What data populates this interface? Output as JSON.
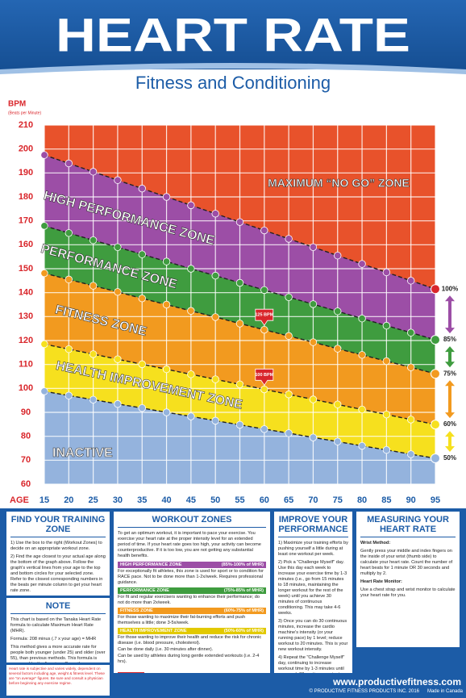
{
  "header": {
    "title": "HEART RATE",
    "subtitle": "Fitness and Conditioning"
  },
  "chart_data": {
    "type": "line",
    "y_axis_label": "BPM",
    "y_axis_sublabel": "(Beats per Minute)",
    "x_axis_label": "AGE",
    "x": [
      15,
      20,
      25,
      30,
      35,
      40,
      45,
      50,
      55,
      60,
      65,
      70,
      75,
      80,
      85,
      90,
      95
    ],
    "xlim": [
      15,
      95
    ],
    "xticks": [
      15,
      20,
      25,
      30,
      35,
      40,
      45,
      50,
      55,
      60,
      65,
      70,
      75,
      80,
      85,
      90,
      95
    ],
    "ylim": [
      60,
      210
    ],
    "yticks": [
      60,
      70,
      80,
      90,
      100,
      110,
      120,
      130,
      140,
      150,
      160,
      170,
      180,
      190,
      200,
      210
    ],
    "grid": true,
    "above_color": "#e8522b",
    "series": [
      {
        "name": "100%",
        "color": "#9c4ea6",
        "values": [
          197.5,
          194,
          190.5,
          187,
          183.5,
          180,
          176.5,
          173,
          169.5,
          166,
          162.5,
          159,
          155.5,
          152,
          148.5,
          145,
          141.5
        ]
      },
      {
        "name": "85%",
        "color": "#3f9c3f",
        "values": [
          167.9,
          164.9,
          161.9,
          159.0,
          156.0,
          153.0,
          150.0,
          147.1,
          144.1,
          141.1,
          138.1,
          135.2,
          132.2,
          129.2,
          126.2,
          123.3,
          120.3
        ]
      },
      {
        "name": "75%",
        "color": "#f29a1f",
        "values": [
          148.1,
          145.5,
          142.9,
          140.3,
          137.6,
          135,
          132.4,
          129.8,
          127.1,
          124.5,
          121.9,
          119.3,
          116.6,
          114,
          111.4,
          108.8,
          106.1
        ]
      },
      {
        "name": "60%",
        "color": "#f6e01e",
        "values": [
          118.5,
          116.4,
          114.3,
          112.2,
          110.1,
          108,
          105.9,
          103.8,
          101.7,
          99.6,
          97.5,
          95.4,
          93.3,
          91.2,
          89.1,
          87,
          84.9
        ]
      },
      {
        "name": "50%",
        "color": "#94b3dd",
        "values": [
          98.8,
          97,
          95.3,
          93.5,
          91.8,
          90,
          88.3,
          86.5,
          84.8,
          83,
          81.3,
          79.5,
          77.8,
          76,
          74.3,
          72.5,
          70.8
        ]
      }
    ],
    "zones": [
      "MAXIMUM “NO GO” ZONE",
      "HIGH PERFORMANCE ZONE",
      "PERFORMANCE ZONE",
      "FITNESS ZONE",
      "HEALTH IMPROVEMENT ZONE",
      "INACTIVE"
    ],
    "callouts": [
      {
        "x": 60,
        "y": 125,
        "label": "125 BPM"
      },
      {
        "x": 60,
        "y": 100,
        "label": "100 BPM"
      }
    ]
  },
  "panels": {
    "find": {
      "title": "FIND YOUR TRAINING ZONE",
      "items": [
        "1) Use the box to the right (Workout Zones) to decide on an appropriate workout zone.",
        "2) Find the age closest to your actual age along the bottom of the graph above. Follow the graph's vertical lines from your age to the top and bottom circles for your selected zone. Refer to the closest corresponding numbers in the beats per minute column to get your heart rate zone.",
        "3) Train within your heart rate zone."
      ]
    },
    "note": {
      "title": "NOTE",
      "items": [
        "This chart is based on the Tanaka Heart Rate formula to calculate Maximum Heart Rate (MHR).",
        "Formula: 208 minus (.7 x your age) = MHR",
        "This method gives a more accurate rate for people both younger (under 25) and older (over 55), than previous methods. This formula is now used by the American Council on Exercise. Thus the MHR for a 60 year old would be 208 - (.7 x 60) = 208 - 42 = 166."
      ]
    },
    "workout": {
      "title": "WORKOUT ZONES",
      "intro": "To get an optimum workout, it is important to pace your exercise. You exercise your heart rate at the proper intensity level for an extended period of time. If your heart rate goes too high, your activity can become counterproductive. If it is too low, you are not getting any substantial health benefits.",
      "zones": [
        {
          "name": "HIGH PERFORMANCE ZONE",
          "range": "(85%-100% of MHR)",
          "color": "#9c4ea6",
          "bullets": [
            "For exceptionally fit athletes, this zone is used for sport or to condition for RACE pace. Not to be done more than 1-2x/week. Requires professional guidance."
          ]
        },
        {
          "name": "PERFORMANCE ZONE",
          "range": "(75%-85% of MHR)",
          "color": "#3f9c3f",
          "bullets": [
            "For fit and regular exercisers wanting to enhance their performance; do not do more than 2x/week."
          ]
        },
        {
          "name": "FITNESS ZONE",
          "range": "(60%-75% of MHR)",
          "color": "#f29a1f",
          "bullets": [
            "For those wanting to maximize their fat-burning efforts and push themselves a little; done 3-5x/week."
          ]
        },
        {
          "name": "HEALTH IMPROVEMENT ZONE",
          "range": "(50%-60% of MHR)",
          "color": "#e2c900",
          "bullets": [
            "For those wanting to improve their health and reduce the risk for chronic disease (i.e. blood pressure, cholesterol).",
            "Can be done daily (i.e. 30 minutes after dinner).",
            "Can be used by athletes during long gentle extended workouts (i.e. 2-4 hrs)."
          ]
        }
      ],
      "example_badge": "EXAMPLE",
      "example_title": "EXAMPLE FOR A 40 YEAR OLD EXERCISING IN FITNESS ZONE",
      "example_lines": [
        "208 - (.7 x 40) = 180 MHR",
        "180 x 0.60 = 108 | 180 x 0.75 = 135",
        "FITNESS ZONE FOR A 40 YEAR OLD IS 108 TO 135 BEATS PER MINUTE"
      ]
    },
    "improve": {
      "title": "IMPROVE YOUR PERFORMANCE",
      "items": [
        "1) Maximize your training efforts by pushing yourself a little during at least one workout per week.",
        "2) Pick a \"Challenge Myself\" day. Use this day each week to increase your exercise time by 1-3 minutes (i.e., go from 15 minutes to 18 minutes, maintaining the longer workout for the rest of the week) until you achieve 30 minutes of continuous conditioning. This may take 4-6 weeks.",
        "3) Once you can do 30 continuous minutes, increase the cardio machine's intensity (or your running pace) by 1 level; reduce workout to 20 minutes. This is your new workout intensity.",
        "4) Repeat the \"Challenge Myself\" day, continuing to increase workout time by 1-3 minutes until you reach 30 continuous minutes again."
      ]
    },
    "measure": {
      "title": "MEASURING YOUR HEART RATE",
      "items": [
        "Wrist Method:",
        "Gently press your middle and index fingers on the inside of your wrist (thumb side) to calculate your heart rate. Count the number of heart beats for 1 minute OR 30 seconds and multiply by 2.",
        "Heart Rate Monitor:",
        "Use a chest strap and wrist monitor to calculate your heart rate for you."
      ]
    }
  },
  "footer": {
    "disclaimer": "Heart rate is subjective and varies widely, dependent on several factors including age, weight & fitness level. These are \"on average\" figures. Be sure and consult a physician before beginning any exercise regime.",
    "url": "www.productivefitness.com",
    "copyright": "© PRODUCTIVE FITNESS PRODUCTS INC. 2016",
    "made": "Made in Canada"
  }
}
